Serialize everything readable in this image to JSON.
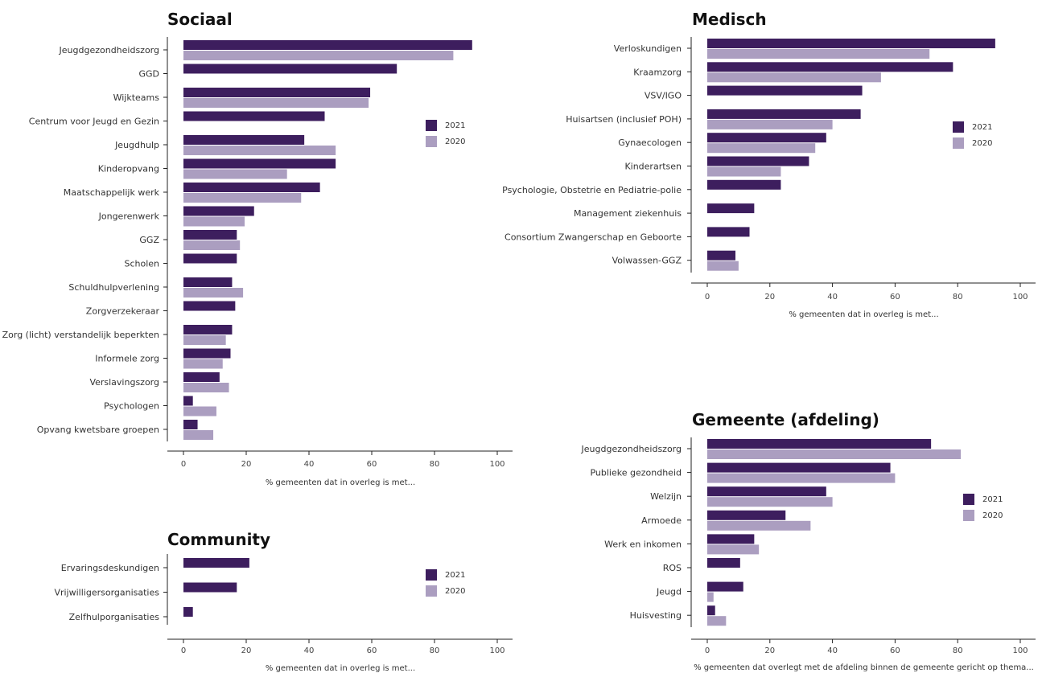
{
  "colors": {
    "s2021": "#3d1e5e",
    "s2020": "#ab9ec0"
  },
  "chart_data": [
    {
      "id": "sociaal",
      "type": "bar",
      "orientation": "horizontal",
      "title": "Sociaal",
      "xlabel": "% gemeenten dat in overleg is met...",
      "xlim": [
        0,
        100
      ],
      "xticks": [
        0,
        20,
        40,
        60,
        80,
        100
      ],
      "legend": [
        "2021",
        "2020"
      ],
      "legend_position": "right",
      "categories": [
        "Jeugdgezondheidszorg",
        "GGD",
        "Wijkteams",
        "Centrum voor Jeugd en Gezin",
        "Jeugdhulp",
        "Kinderopvang",
        "Maatschappelijk werk",
        "Jongerenwerk",
        "GGZ",
        "Scholen",
        "Schuldhulpverlening",
        "Zorgverzekeraar",
        "Zorg (licht) verstandelijk beperkten",
        "Informele zorg",
        "Verslavingszorg",
        "Psychologen",
        "Opvang kwetsbare groepen"
      ],
      "series": [
        {
          "name": "2021",
          "values": [
            92,
            68,
            59.5,
            45,
            38.5,
            48.5,
            43.5,
            22.5,
            17,
            17,
            15.5,
            16.5,
            15.5,
            15,
            11.5,
            3,
            4.5
          ]
        },
        {
          "name": "2020",
          "values": [
            86,
            null,
            59,
            null,
            48.5,
            33,
            37.5,
            19.5,
            18,
            null,
            19,
            null,
            13.5,
            12.5,
            14.5,
            10.5,
            9.5
          ]
        }
      ]
    },
    {
      "id": "community",
      "type": "bar",
      "orientation": "horizontal",
      "title": "Community",
      "xlabel": "% gemeenten dat in overleg is met...",
      "xlim": [
        0,
        100
      ],
      "xticks": [
        0,
        20,
        40,
        60,
        80,
        100
      ],
      "legend": [
        "2021",
        "2020"
      ],
      "legend_position": "right",
      "categories": [
        "Ervaringsdeskundigen",
        "Vrijwilligersorganisaties",
        "Zelfhulporganisaties"
      ],
      "series": [
        {
          "name": "2021",
          "values": [
            21,
            17,
            3
          ]
        },
        {
          "name": "2020",
          "values": [
            null,
            null,
            null
          ]
        }
      ]
    },
    {
      "id": "medisch",
      "type": "bar",
      "orientation": "horizontal",
      "title": "Medisch",
      "xlabel": "% gemeenten dat in overleg is met...",
      "xlim": [
        0,
        100
      ],
      "xticks": [
        0,
        20,
        40,
        60,
        80,
        100
      ],
      "legend": [
        "2021",
        "2020"
      ],
      "legend_position": "right",
      "categories": [
        "Verloskundigen",
        "Kraamzorg",
        "VSV/IGO",
        "Huisartsen (inclusief POH)",
        "Gynaecologen",
        "Kinderartsen",
        "Psychologie, Obstetrie en Pediatrie-polie",
        "Management ziekenhuis",
        "Consortium Zwangerschap en Geboorte",
        "Volwassen-GGZ"
      ],
      "series": [
        {
          "name": "2021",
          "values": [
            92,
            78.5,
            49.5,
            49,
            38,
            32.5,
            23.5,
            15,
            13.5,
            9
          ]
        },
        {
          "name": "2020",
          "values": [
            71,
            55.5,
            null,
            40,
            34.5,
            23.5,
            null,
            null,
            null,
            10
          ]
        }
      ]
    },
    {
      "id": "gemeente",
      "type": "bar",
      "orientation": "horizontal",
      "title": "Gemeente (afdeling)",
      "xlabel": "% gemeenten dat overlegt met de afdeling binnen de gemeente gericht op thema...",
      "xlim": [
        0,
        100
      ],
      "xticks": [
        0,
        20,
        40,
        60,
        80,
        100
      ],
      "legend": [
        "2021",
        "2020"
      ],
      "legend_position": "right",
      "categories": [
        "Jeugdgezondheidszorg",
        "Publieke gezondheid",
        "Welzijn",
        "Armoede",
        "Werk en inkomen",
        "ROS",
        "Jeugd",
        "Huisvesting"
      ],
      "series": [
        {
          "name": "2021",
          "values": [
            71.5,
            58.5,
            38,
            25,
            15,
            10.5,
            11.5,
            2.5
          ]
        },
        {
          "name": "2020",
          "values": [
            81,
            60,
            40,
            33,
            16.5,
            null,
            2,
            6
          ]
        }
      ]
    }
  ]
}
